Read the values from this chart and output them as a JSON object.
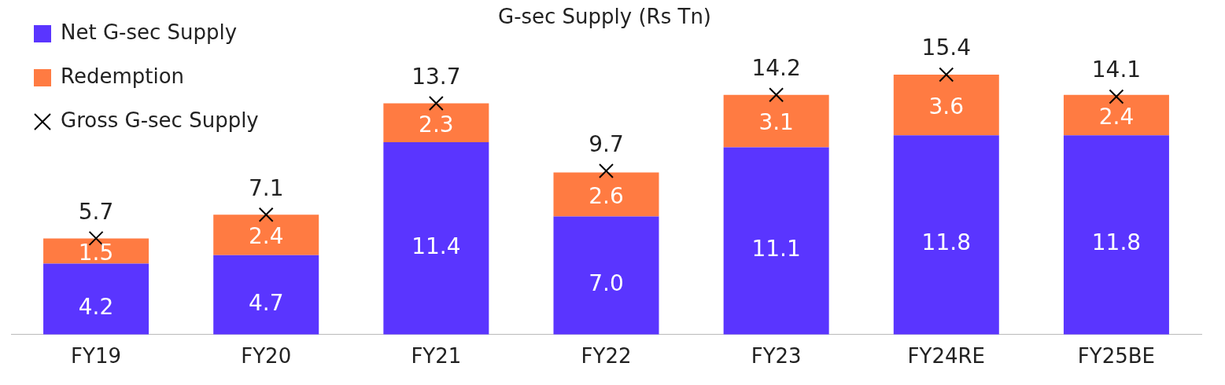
{
  "chart_data": {
    "type": "bar",
    "title": "G-sec Supply (Rs Tn)",
    "categories": [
      "FY19",
      "FY20",
      "FY21",
      "FY22",
      "FY23",
      "FY24RE",
      "FY25BE"
    ],
    "stacked": true,
    "data_labels": true,
    "legend": "left",
    "series": [
      {
        "name": "Net G-sec Supply",
        "color": "#5a35ff",
        "values": [
          4.2,
          4.7,
          11.4,
          7.0,
          11.1,
          11.8,
          11.8
        ],
        "value_labels": [
          "4.2",
          "4.7",
          "11.4",
          "7.0",
          "11.1",
          "11.8",
          "11.8"
        ]
      },
      {
        "name": "Redemption",
        "color": "#ff7b42",
        "values": [
          1.5,
          2.4,
          2.3,
          2.6,
          3.1,
          3.6,
          2.4
        ]
      },
      {
        "name": "Gross G-sec Supply",
        "type": "scatter",
        "marker": "cross",
        "color": "#000000",
        "values": [
          5.7,
          7.1,
          13.7,
          9.7,
          14.2,
          15.4,
          14.1
        ]
      }
    ]
  }
}
